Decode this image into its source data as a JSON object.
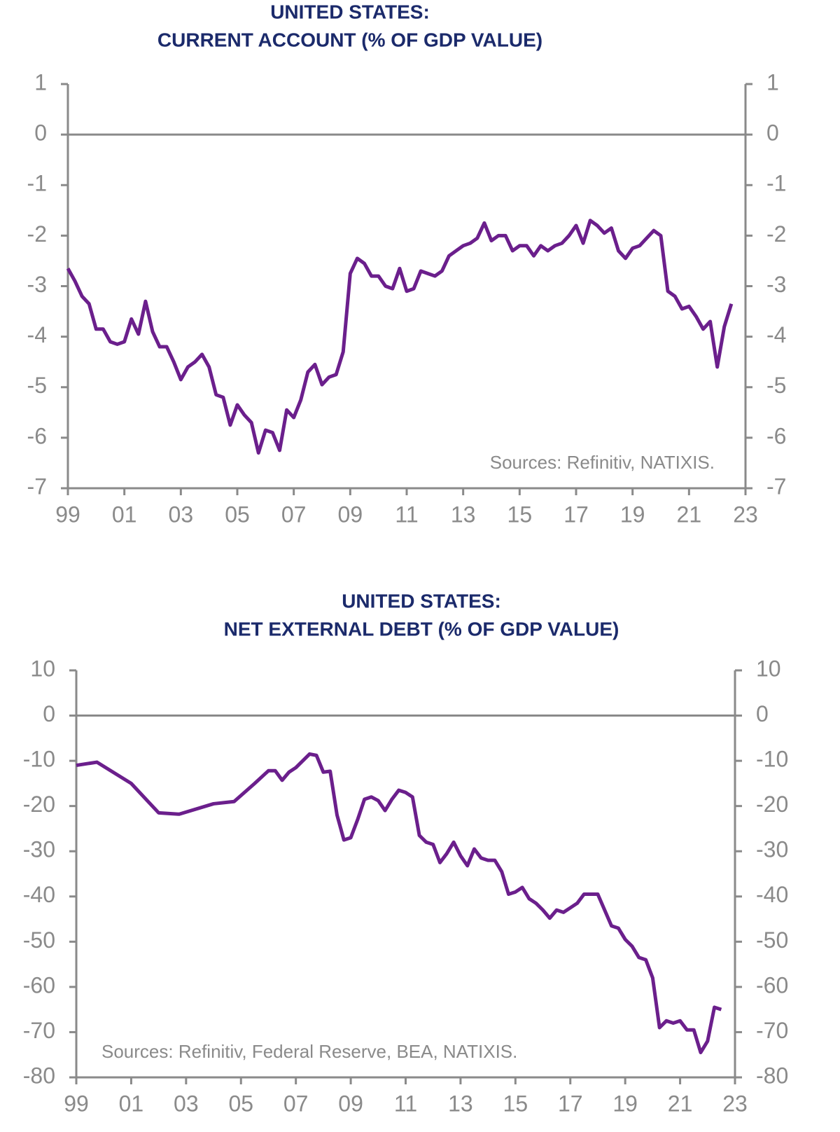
{
  "chart_data": [
    {
      "type": "line",
      "title": "UNITED STATES:",
      "subtitle": "CURRENT ACCOUNT (% OF GDP VALUE)",
      "annotation": "Sources: Refinitiv, NATIXIS.",
      "xlim": [
        1999,
        2023
      ],
      "xticks": [
        {
          "value": 1999,
          "label": "99"
        },
        {
          "value": 2001,
          "label": "01"
        },
        {
          "value": 2003,
          "label": "03"
        },
        {
          "value": 2005,
          "label": "05"
        },
        {
          "value": 2007,
          "label": "07"
        },
        {
          "value": 2009,
          "label": "09"
        },
        {
          "value": 2011,
          "label": "11"
        },
        {
          "value": 2013,
          "label": "13"
        },
        {
          "value": 2015,
          "label": "15"
        },
        {
          "value": 2017,
          "label": "17"
        },
        {
          "value": 2019,
          "label": "19"
        },
        {
          "value": 2021,
          "label": "21"
        },
        {
          "value": 2023,
          "label": "23"
        }
      ],
      "ylim": [
        -7,
        1
      ],
      "yticks": [
        1,
        0,
        -1,
        -2,
        -3,
        -4,
        -5,
        -6,
        -7
      ],
      "x": [
        1999,
        1999.25,
        1999.5,
        1999.75,
        2000,
        2000.25,
        2000.5,
        2000.75,
        2001,
        2001.25,
        2001.5,
        2001.75,
        2002,
        2002.25,
        2002.5,
        2002.75,
        2003,
        2003.25,
        2003.5,
        2003.75,
        2004,
        2004.25,
        2004.5,
        2004.75,
        2005,
        2005.25,
        2005.5,
        2005.75,
        2006,
        2006.25,
        2006.5,
        2006.75,
        2007,
        2007.25,
        2007.5,
        2007.75,
        2008,
        2008.25,
        2008.5,
        2008.75,
        2009,
        2009.25,
        2009.5,
        2009.75,
        2010,
        2010.25,
        2010.5,
        2010.75,
        2011,
        2011.25,
        2011.5,
        2011.75,
        2012,
        2012.25,
        2012.5,
        2012.75,
        2013,
        2013.25,
        2013.5,
        2013.75,
        2014,
        2014.25,
        2014.5,
        2014.75,
        2015,
        2015.25,
        2015.5,
        2015.75,
        2016,
        2016.25,
        2016.5,
        2016.75,
        2017,
        2017.25,
        2017.5,
        2017.75,
        2018,
        2018.25,
        2018.5,
        2018.75,
        2019,
        2019.25,
        2019.5,
        2019.75,
        2020,
        2020.25,
        2020.5,
        2020.75,
        2021,
        2021.25,
        2021.5,
        2021.75,
        2022,
        2022.25,
        2022.5
      ],
      "series": [
        {
          "color": "#6b1f8c",
          "values": [
            -2.65,
            -2.9,
            -3.2,
            -3.35,
            -3.85,
            -3.85,
            -4.1,
            -4.15,
            -4.1,
            -3.65,
            -3.95,
            -3.3,
            -3.9,
            -4.2,
            -4.2,
            -4.5,
            -4.85,
            -4.6,
            -4.5,
            -4.35,
            -4.6,
            -5.15,
            -5.2,
            -5.75,
            -5.35,
            -5.55,
            -5.7,
            -6.3,
            -5.85,
            -5.9,
            -6.25,
            -5.45,
            -5.6,
            -5.25,
            -4.7,
            -4.55,
            -4.95,
            -4.8,
            -4.75,
            -4.3,
            -2.75,
            -2.45,
            -2.55,
            -2.8,
            -2.8,
            -3.0,
            -3.05,
            -2.65,
            -3.1,
            -3.05,
            -2.7,
            -2.75,
            -2.8,
            -2.7,
            -2.4,
            -2.3,
            -2.2,
            -2.15,
            -2.05,
            -1.75,
            -2.1,
            -2.0,
            -2.0,
            -2.3,
            -2.2,
            -2.2,
            -2.4,
            -2.2,
            -2.3,
            -2.2,
            -2.15,
            -2.0,
            -1.8,
            -2.15,
            -1.7,
            -1.8,
            -1.95,
            -1.85,
            -2.3,
            -2.45,
            -2.25,
            -2.2,
            -2.05,
            -1.9,
            -2.0,
            -3.1,
            -3.2,
            -3.45,
            -3.4,
            -3.6,
            -3.85,
            -3.7,
            -4.6,
            -3.8,
            -3.35
          ]
        }
      ]
    },
    {
      "type": "line",
      "title": "UNITED STATES:",
      "subtitle": "NET EXTERNAL DEBT (% OF GDP VALUE)",
      "annotation": "Sources: Refinitiv, Federal Reserve, BEA, NATIXIS.",
      "xlim": [
        1999,
        2023
      ],
      "xticks": [
        {
          "value": 1999,
          "label": "99"
        },
        {
          "value": 2001,
          "label": "01"
        },
        {
          "value": 2003,
          "label": "03"
        },
        {
          "value": 2005,
          "label": "05"
        },
        {
          "value": 2007,
          "label": "07"
        },
        {
          "value": 2009,
          "label": "09"
        },
        {
          "value": 2011,
          "label": "11"
        },
        {
          "value": 2013,
          "label": "13"
        },
        {
          "value": 2015,
          "label": "15"
        },
        {
          "value": 2017,
          "label": "17"
        },
        {
          "value": 2019,
          "label": "19"
        },
        {
          "value": 2021,
          "label": "21"
        },
        {
          "value": 2023,
          "label": "23"
        }
      ],
      "ylim": [
        -80,
        10
      ],
      "yticks": [
        10,
        0,
        -10,
        -20,
        -30,
        -40,
        -50,
        -60,
        -70,
        -80
      ],
      "x": [
        1999,
        1999.75,
        2001,
        2002,
        2002.75,
        2004,
        2004.75,
        2005.5,
        2006,
        2006.25,
        2006.5,
        2006.75,
        2007,
        2007.5,
        2007.75,
        2008,
        2008.25,
        2008.5,
        2008.75,
        2009,
        2009.25,
        2009.5,
        2009.75,
        2010,
        2010.25,
        2010.5,
        2010.75,
        2011,
        2011.25,
        2011.5,
        2011.75,
        2012,
        2012.25,
        2012.5,
        2012.75,
        2013,
        2013.25,
        2013.5,
        2013.75,
        2014,
        2014.25,
        2014.5,
        2014.75,
        2015,
        2015.25,
        2015.5,
        2015.75,
        2016,
        2016.25,
        2016.5,
        2016.75,
        2017,
        2017.25,
        2017.5,
        2017.75,
        2018,
        2018.25,
        2018.5,
        2018.75,
        2019,
        2019.25,
        2019.5,
        2019.75,
        2020,
        2020.25,
        2020.5,
        2020.75,
        2021,
        2021.25,
        2021.5,
        2021.75,
        2022,
        2022.25,
        2022.5
      ],
      "series": [
        {
          "color": "#6b1f8c",
          "values": [
            -11,
            -10.3,
            -15,
            -21.5,
            -21.8,
            -19.5,
            -19,
            -15,
            -12.2,
            -12.2,
            -14.3,
            -12.5,
            -11.5,
            -8.5,
            -8.8,
            -12.5,
            -12.3,
            -22,
            -27.5,
            -27,
            -23,
            -18.5,
            -18,
            -18.8,
            -21,
            -18.5,
            -16.5,
            -17,
            -18,
            -26.5,
            -28,
            -28.5,
            -32.5,
            -30.5,
            -28,
            -31,
            -33.2,
            -29.5,
            -31.5,
            -32,
            -32,
            -34.5,
            -39.5,
            -39,
            -38,
            -40.5,
            -41.5,
            -43,
            -44.8,
            -43,
            -43.5,
            -42.5,
            -41.5,
            -39.5,
            -39.5,
            -39.5,
            -43,
            -46.5,
            -47,
            -49.5,
            -51,
            -53.5,
            -54,
            -58,
            -69,
            -67.5,
            -68,
            -67.5,
            -69.5,
            -69.5,
            -74.5,
            -72,
            -64.5,
            -65
          ]
        }
      ]
    }
  ]
}
